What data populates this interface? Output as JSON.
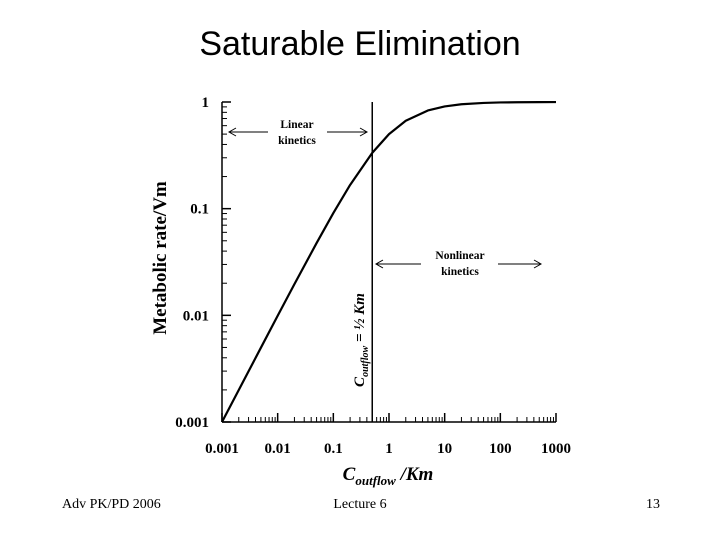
{
  "slide": {
    "title": "Saturable Elimination",
    "footer_left": "Adv PK/PD 2006",
    "footer_center": "Lecture 6",
    "footer_right": "13"
  },
  "chart_data": {
    "type": "line",
    "x_scale": "log",
    "y_scale": "log",
    "xlim": [
      0.001,
      1000
    ],
    "ylim": [
      0.001,
      1
    ],
    "x_ticks": [
      0.001,
      0.01,
      0.1,
      1,
      10,
      100,
      1000
    ],
    "x_tick_labels": [
      "0.001",
      "0.01",
      "0.1",
      "1",
      "10",
      "100",
      "1000"
    ],
    "y_ticks": [
      0.001,
      0.01,
      0.1,
      1
    ],
    "y_tick_labels": [
      "0.001",
      "0.01",
      "0.1",
      "1"
    ],
    "xlabel_main": "C",
    "xlabel_sub": "outflow",
    "xlabel_tail": " /Km",
    "ylabel": "Metabolic rate/Vm",
    "series": [
      {
        "x": [
          0.001,
          0.002,
          0.005,
          0.01,
          0.02,
          0.05,
          0.1,
          0.2,
          0.5,
          1,
          2,
          5,
          10,
          20,
          50,
          100,
          200,
          500,
          1000
        ],
        "y": [
          0.000999,
          0.001996,
          0.004975,
          0.0099,
          0.0196,
          0.0476,
          0.0909,
          0.1667,
          0.3333,
          0.5,
          0.6667,
          0.8333,
          0.9091,
          0.9524,
          0.9804,
          0.9901,
          0.995,
          0.998,
          0.999
        ]
      }
    ],
    "reference_line": {
      "x": 0.5,
      "label_main": "C",
      "label_sub": "outflow",
      "label_tail": " = ½ Km"
    },
    "annotations": [
      {
        "id": "linear",
        "lines": [
          "Linear",
          "kinetics"
        ]
      },
      {
        "id": "nonlinear",
        "lines": [
          "Nonlinear",
          "kinetics"
        ]
      }
    ]
  }
}
